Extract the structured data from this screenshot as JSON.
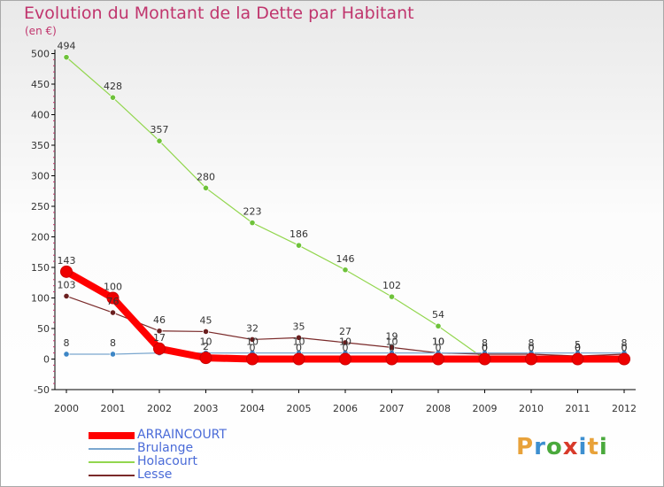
{
  "title": "Evolution du Montant de la Dette par Habitant",
  "subtitle": "(en €)",
  "logo": {
    "text": "Proxiti",
    "colors": [
      "#e8a23a",
      "#3d8fd0",
      "#4aa93c",
      "#d83a2a",
      "#3d8fd0",
      "#e8a23a",
      "#4aa93c"
    ]
  },
  "chart_data": {
    "type": "line",
    "title": "Evolution du Montant de la Dette par Habitant",
    "ylabel": "(en €)",
    "xlabel": "",
    "x": [
      "2000",
      "2001",
      "2002",
      "2003",
      "2004",
      "2005",
      "2006",
      "2007",
      "2008",
      "2009",
      "2010",
      "2011",
      "2012"
    ],
    "ylim": [
      -50,
      500
    ],
    "yticks": [
      "-50",
      "0",
      "50",
      "100",
      "150",
      "200",
      "250",
      "300",
      "350",
      "400",
      "450",
      "500"
    ],
    "grid": false,
    "legend": "bottom-left",
    "series": [
      {
        "name": "Holacourt",
        "color": "#92d64e",
        "marker": "#6ec23a",
        "values": [
          494,
          428,
          357,
          280,
          223,
          186,
          146,
          102,
          54,
          0,
          0,
          0,
          0
        ],
        "labels": [
          "494",
          "428",
          "357",
          "280",
          "223",
          "186",
          "146",
          "102",
          "54",
          "0",
          "0",
          "0",
          "0"
        ]
      },
      {
        "name": "Lesse",
        "color": "#7a2a2a",
        "marker": "#6a1f1f",
        "values": [
          103,
          76,
          46,
          45,
          32,
          35,
          27,
          19,
          10,
          8,
          8,
          5,
          8
        ],
        "labels": [
          "103",
          "76",
          "46",
          "45",
          "32",
          "35",
          "27",
          "19",
          "10",
          "8",
          "8",
          "5",
          "8"
        ]
      },
      {
        "name": "Brulange",
        "color": "#7ba7cf",
        "marker": "#3d86c6",
        "values": [
          8,
          8,
          10,
          10,
          10,
          10,
          10,
          10,
          10,
          10,
          10,
          10,
          10
        ],
        "labels": [
          "8",
          "8",
          "",
          "10",
          "10",
          "10",
          "10",
          "10",
          "10",
          "",
          "",
          "",
          ""
        ]
      },
      {
        "name": "ARRAINCOURT",
        "color": "#ff0000",
        "marker": "#ee0000",
        "values": [
          143,
          100,
          17,
          2,
          0,
          0,
          0,
          0,
          0,
          0,
          0,
          0,
          0
        ],
        "labels": [
          "143",
          "100",
          "17",
          "2",
          "0",
          "0",
          "0",
          "0",
          "0",
          "0",
          "0",
          "0",
          "0"
        ]
      }
    ]
  },
  "legend_items": [
    {
      "name": "ARRAINCOURT",
      "color": "#ff0000",
      "thick": true
    },
    {
      "name": "Brulange",
      "color": "#7ba7cf",
      "thick": false
    },
    {
      "name": "Holacourt",
      "color": "#92d64e",
      "thick": false
    },
    {
      "name": "Lesse",
      "color": "#7a2a2a",
      "thick": false
    }
  ]
}
